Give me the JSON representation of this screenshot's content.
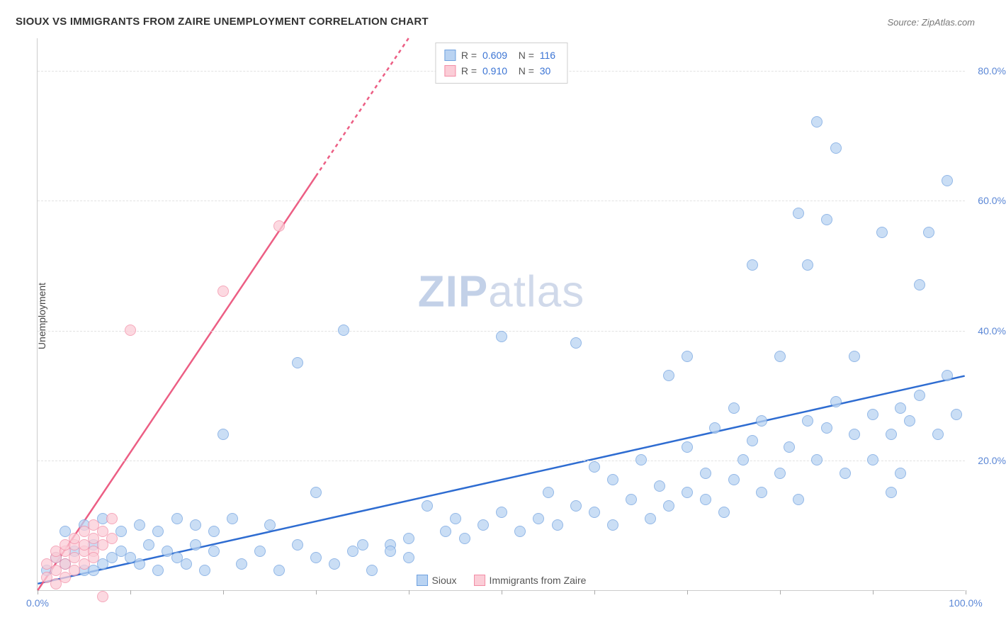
{
  "title": "SIOUX VS IMMIGRANTS FROM ZAIRE UNEMPLOYMENT CORRELATION CHART",
  "source": "Source: ZipAtlas.com",
  "y_axis_label": "Unemployment",
  "watermark": {
    "zip": "ZIP",
    "atlas": "atlas"
  },
  "colors": {
    "blue_fill": "#b9d3f2",
    "blue_stroke": "#6fa1df",
    "blue_line": "#2e6cd1",
    "pink_fill": "#fbcdd7",
    "pink_stroke": "#f28ca5",
    "pink_line": "#ec5e84",
    "grid": "#e2e2e2",
    "tick_text": "#5b87d6",
    "title_text": "#333333",
    "axis_text": "#444444",
    "source_text": "#777777",
    "legend_border": "#cfcfcf"
  },
  "chart": {
    "type": "scatter",
    "xlim": [
      0,
      100
    ],
    "ylim": [
      0,
      85
    ],
    "y_ticks": [
      20,
      40,
      60,
      80
    ],
    "y_tick_labels": [
      "20.0%",
      "40.0%",
      "60.0%",
      "80.0%"
    ],
    "x_ticks": [
      0,
      10,
      20,
      30,
      40,
      50,
      60,
      70,
      80,
      90,
      100
    ],
    "x_tick_labels": {
      "0": "0.0%",
      "100": "100.0%"
    },
    "marker_radius": 8,
    "marker_opacity": 0.75,
    "trend_width": 2.5
  },
  "series": [
    {
      "name": "Sioux",
      "color_fill_key": "blue_fill",
      "color_stroke_key": "blue_stroke",
      "trend_color_key": "blue_line",
      "trend": {
        "x1": 0,
        "y1": 1,
        "x2": 100,
        "y2": 33,
        "dashed_from_x": null
      },
      "R": "0.609",
      "N": "116",
      "points": [
        [
          1,
          3
        ],
        [
          2,
          5
        ],
        [
          3,
          4
        ],
        [
          4,
          6
        ],
        [
          5,
          3
        ],
        [
          6,
          7
        ],
        [
          7,
          4
        ],
        [
          8,
          5
        ],
        [
          6,
          3
        ],
        [
          9,
          6
        ],
        [
          10,
          5
        ],
        [
          11,
          4
        ],
        [
          12,
          7
        ],
        [
          13,
          3
        ],
        [
          14,
          6
        ],
        [
          15,
          5
        ],
        [
          16,
          4
        ],
        [
          17,
          7
        ],
        [
          18,
          3
        ],
        [
          19,
          6
        ],
        [
          3,
          9
        ],
        [
          5,
          10
        ],
        [
          7,
          11
        ],
        [
          9,
          9
        ],
        [
          11,
          10
        ],
        [
          13,
          9
        ],
        [
          15,
          11
        ],
        [
          17,
          10
        ],
        [
          19,
          9
        ],
        [
          21,
          11
        ],
        [
          22,
          4
        ],
        [
          24,
          6
        ],
        [
          26,
          3
        ],
        [
          28,
          7
        ],
        [
          30,
          5
        ],
        [
          32,
          4
        ],
        [
          34,
          6
        ],
        [
          36,
          3
        ],
        [
          38,
          7
        ],
        [
          40,
          5
        ],
        [
          20,
          24
        ],
        [
          28,
          35
        ],
        [
          33,
          40
        ],
        [
          30,
          15
        ],
        [
          25,
          10
        ],
        [
          35,
          7
        ],
        [
          38,
          6
        ],
        [
          40,
          8
        ],
        [
          42,
          13
        ],
        [
          44,
          9
        ],
        [
          45,
          11
        ],
        [
          46,
          8
        ],
        [
          48,
          10
        ],
        [
          50,
          12
        ],
        [
          50,
          39
        ],
        [
          52,
          9
        ],
        [
          54,
          11
        ],
        [
          55,
          15
        ],
        [
          56,
          10
        ],
        [
          58,
          13
        ],
        [
          58,
          38
        ],
        [
          60,
          12
        ],
        [
          60,
          19
        ],
        [
          62,
          10
        ],
        [
          62,
          17
        ],
        [
          64,
          14
        ],
        [
          65,
          20
        ],
        [
          66,
          11
        ],
        [
          67,
          16
        ],
        [
          68,
          13
        ],
        [
          68,
          33
        ],
        [
          70,
          15
        ],
        [
          70,
          22
        ],
        [
          70,
          36
        ],
        [
          72,
          14
        ],
        [
          72,
          18
        ],
        [
          73,
          25
        ],
        [
          74,
          12
        ],
        [
          75,
          17
        ],
        [
          75,
          28
        ],
        [
          76,
          20
        ],
        [
          77,
          23
        ],
        [
          77,
          50
        ],
        [
          78,
          15
        ],
        [
          78,
          26
        ],
        [
          80,
          18
        ],
        [
          80,
          36
        ],
        [
          81,
          22
        ],
        [
          82,
          14
        ],
        [
          82,
          58
        ],
        [
          83,
          26
        ],
        [
          83,
          50
        ],
        [
          84,
          20
        ],
        [
          84,
          72
        ],
        [
          85,
          25
        ],
        [
          85,
          57
        ],
        [
          86,
          29
        ],
        [
          86,
          68
        ],
        [
          87,
          18
        ],
        [
          88,
          24
        ],
        [
          88,
          36
        ],
        [
          90,
          20
        ],
        [
          90,
          27
        ],
        [
          91,
          55
        ],
        [
          92,
          24
        ],
        [
          92,
          15
        ],
        [
          93,
          28
        ],
        [
          93,
          18
        ],
        [
          94,
          26
        ],
        [
          95,
          30
        ],
        [
          95,
          47
        ],
        [
          96,
          55
        ],
        [
          97,
          24
        ],
        [
          98,
          33
        ],
        [
          98,
          63
        ],
        [
          99,
          27
        ]
      ]
    },
    {
      "name": "Immigrants from Zaire",
      "color_fill_key": "pink_fill",
      "color_stroke_key": "pink_stroke",
      "trend_color_key": "pink_line",
      "trend": {
        "x1": 0,
        "y1": 0,
        "x2": 40,
        "y2": 85,
        "dashed_from_x": 30
      },
      "R": "0.910",
      "N": "30",
      "points": [
        [
          1,
          2
        ],
        [
          1,
          4
        ],
        [
          2,
          3
        ],
        [
          2,
          5
        ],
        [
          2,
          6
        ],
        [
          3,
          4
        ],
        [
          3,
          6
        ],
        [
          3,
          7
        ],
        [
          4,
          5
        ],
        [
          4,
          7
        ],
        [
          4,
          8
        ],
        [
          5,
          6
        ],
        [
          5,
          7
        ],
        [
          5,
          9
        ],
        [
          6,
          6
        ],
        [
          6,
          8
        ],
        [
          6,
          10
        ],
        [
          7,
          7
        ],
        [
          7,
          9
        ],
        [
          8,
          8
        ],
        [
          8,
          11
        ],
        [
          2,
          1
        ],
        [
          3,
          2
        ],
        [
          4,
          3
        ],
        [
          5,
          4
        ],
        [
          6,
          5
        ],
        [
          10,
          40
        ],
        [
          20,
          46
        ],
        [
          26,
          56
        ],
        [
          7,
          -1
        ]
      ]
    }
  ],
  "legend_bottom": [
    {
      "label": "Sioux",
      "fill_key": "blue_fill",
      "stroke_key": "blue_stroke"
    },
    {
      "label": "Immigrants from Zaire",
      "fill_key": "pink_fill",
      "stroke_key": "pink_stroke"
    }
  ]
}
